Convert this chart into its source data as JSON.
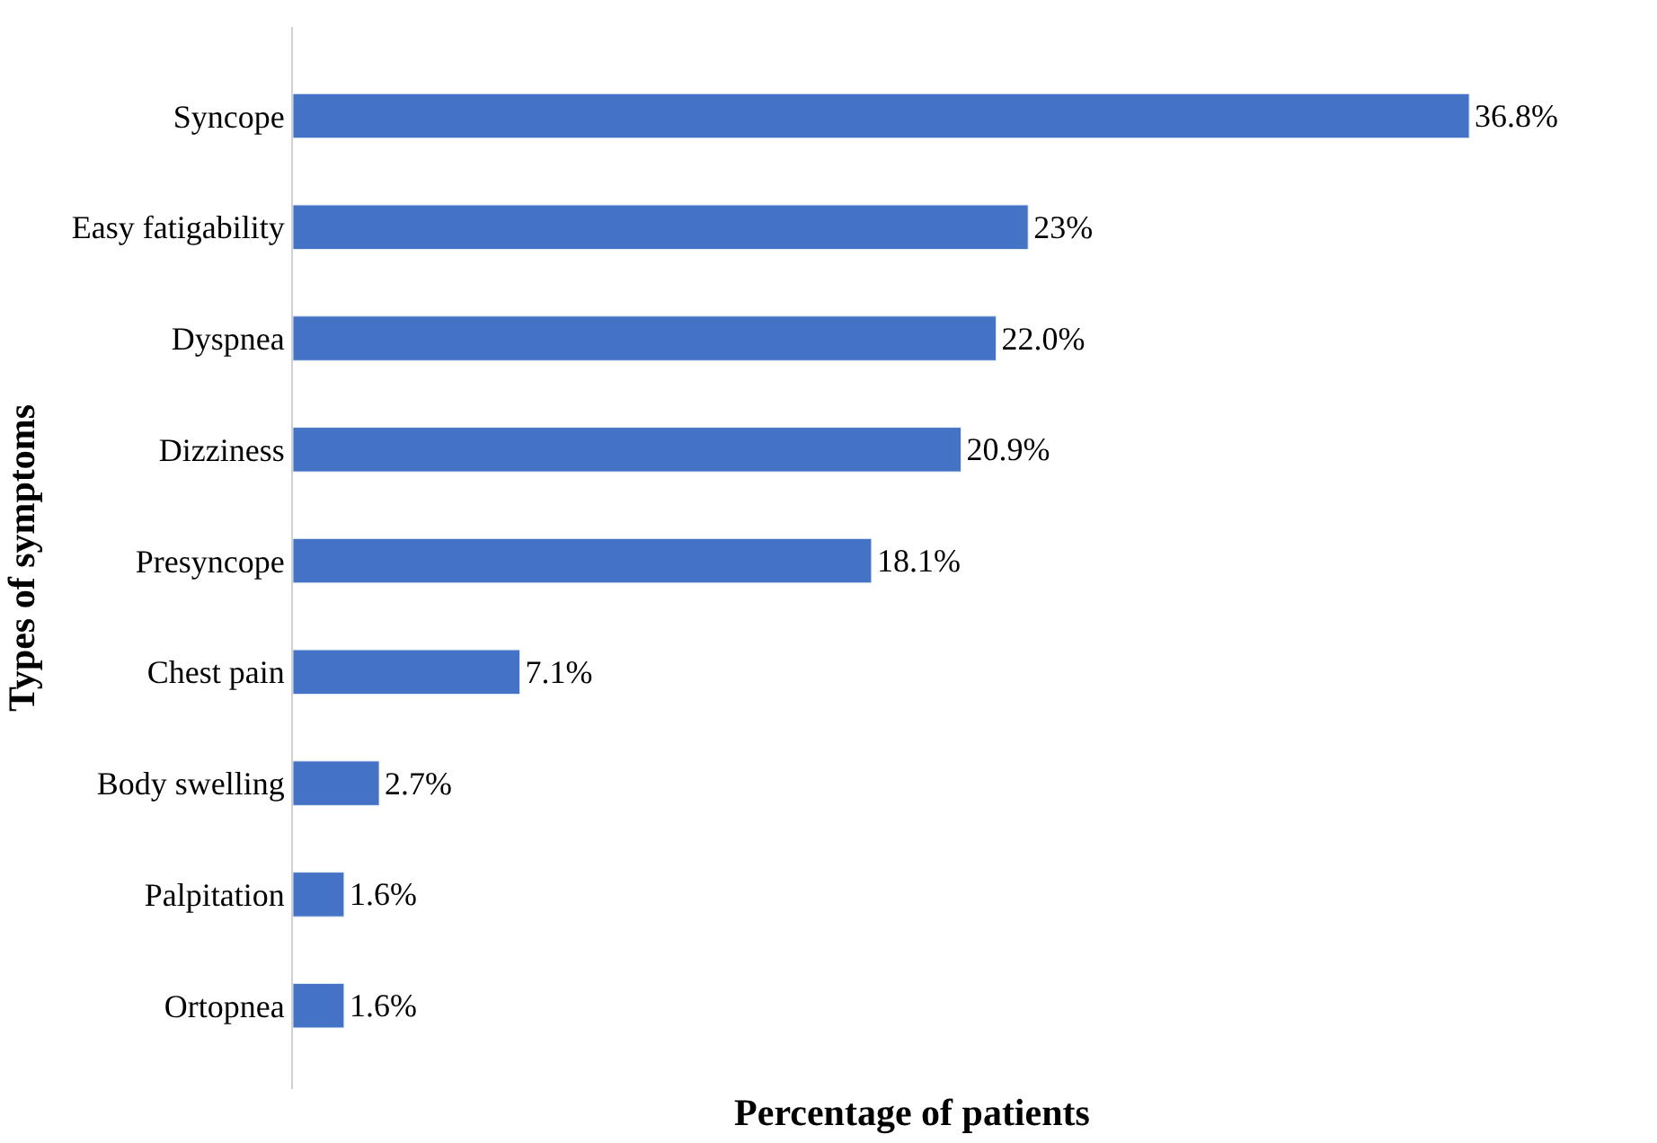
{
  "chart_data": {
    "type": "bar",
    "orientation": "horizontal",
    "xlabel": "Percentage of patients",
    "ylabel": "Types of symptoms",
    "categories": [
      "Syncope",
      "Easy fatigability",
      "Dyspnea",
      "Dizziness",
      "Presyncope",
      "Chest pain",
      "Body swelling",
      "Palpitation",
      "Ortopnea"
    ],
    "values": [
      36.8,
      23,
      22.0,
      20.9,
      18.1,
      7.1,
      2.7,
      1.6,
      1.6
    ],
    "value_labels": [
      "36.8%",
      "23%",
      "22.0%",
      "20.9%",
      "18.1%",
      "7.1%",
      "2.7%",
      "1.6%",
      "1.6%"
    ],
    "color": "#4472c4"
  }
}
